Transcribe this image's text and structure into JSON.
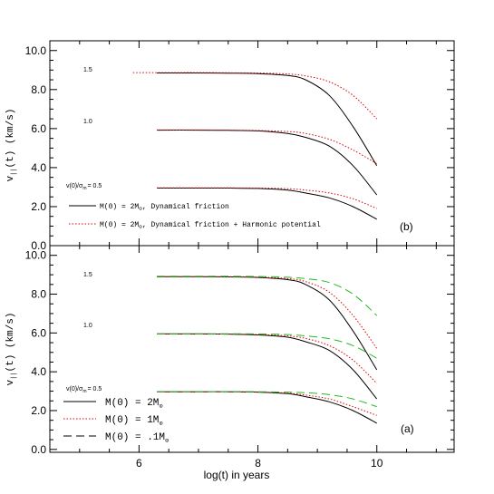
{
  "chart_data": [
    {
      "type": "line",
      "panel_label": "(b)",
      "ylabel": "v",
      "ylabel_sub": "||",
      "ylabel_tail": "(t)  (km/s)",
      "xlim": [
        4.5,
        11.3
      ],
      "ylim": [
        0,
        10.5
      ],
      "yticks": [
        "0.0",
        "2.0",
        "4.0",
        "6.0",
        "8.0",
        "10.0"
      ],
      "ytick_values": [
        0,
        2,
        4,
        6,
        8,
        10
      ],
      "annotations": [
        "1.5",
        "1.0",
        "v(0)/σ",
        "= 0.5"
      ],
      "legend": {
        "placement": "bottom-left",
        "entries": [
          {
            "text": "M(0)  =  2M",
            "sub": "⊙",
            "tail": ",  Dynamical friction",
            "style": "solid",
            "color": "#000000"
          },
          {
            "text": "M(0)  =  2M",
            "sub": "⊙",
            "tail": ",  Dynamical friction + Harmonic potential",
            "style": "dotted",
            "color": "#dd0000"
          }
        ]
      },
      "series": [
        {
          "style": "solid",
          "color": "#000000",
          "x": [
            6.3,
            7,
            7.5,
            8,
            8.5,
            8.8,
            9.2,
            9.6,
            10
          ],
          "y": [
            8.85,
            8.85,
            8.84,
            8.82,
            8.72,
            8.5,
            7.7,
            6.1,
            4.1
          ]
        },
        {
          "style": "solid",
          "color": "#000000",
          "x": [
            6.3,
            7,
            7.5,
            8,
            8.5,
            8.8,
            9.2,
            9.6,
            10
          ],
          "y": [
            5.92,
            5.92,
            5.91,
            5.88,
            5.75,
            5.55,
            5.1,
            4.1,
            2.6
          ]
        },
        {
          "style": "solid",
          "color": "#000000",
          "x": [
            6.3,
            7,
            7.5,
            8,
            8.5,
            8.8,
            9.2,
            9.6,
            10
          ],
          "y": [
            2.95,
            2.95,
            2.95,
            2.93,
            2.85,
            2.7,
            2.45,
            2.0,
            1.35
          ]
        },
        {
          "style": "dotted",
          "color": "#dd0000",
          "x": [
            5.9,
            6.5,
            7,
            7.5,
            8,
            8.5,
            8.8,
            9.2,
            9.6,
            10
          ],
          "y": [
            8.87,
            8.87,
            8.87,
            8.86,
            8.85,
            8.8,
            8.7,
            8.4,
            7.7,
            6.5
          ]
        },
        {
          "style": "dotted",
          "color": "#dd0000",
          "x": [
            6.3,
            7,
            7.5,
            8,
            8.5,
            8.8,
            9.2,
            9.6,
            10
          ],
          "y": [
            5.93,
            5.93,
            5.92,
            5.9,
            5.85,
            5.75,
            5.45,
            4.9,
            4.2
          ]
        },
        {
          "style": "dotted",
          "color": "#dd0000",
          "x": [
            6.3,
            7,
            7.5,
            8,
            8.5,
            8.8,
            9.2,
            9.6,
            10
          ],
          "y": [
            2.96,
            2.96,
            2.96,
            2.95,
            2.92,
            2.85,
            2.7,
            2.4,
            1.9
          ]
        }
      ]
    },
    {
      "type": "line",
      "panel_label": "(a)",
      "xlabel": "log(t) in years",
      "ylabel": "v",
      "ylabel_sub": "||",
      "ylabel_tail": "(t)  (km/s)",
      "xlim": [
        4.5,
        11.3
      ],
      "ylim": [
        -0.15,
        10.5
      ],
      "xticks": [
        "6",
        "8",
        "10"
      ],
      "xtick_values": [
        6,
        8,
        10
      ],
      "yticks": [
        "0.0",
        "2.0",
        "4.0",
        "6.0",
        "8.0",
        "10.0"
      ],
      "ytick_values": [
        0,
        2,
        4,
        6,
        8,
        10
      ],
      "annotations": [
        "1.5",
        "1.0",
        "v(0)/σ",
        "= 0.5"
      ],
      "legend": {
        "placement": "bottom-left",
        "entries": [
          {
            "text": "M(0)  =  2M",
            "sub": "⊙",
            "tail": "",
            "style": "solid",
            "color": "#000000"
          },
          {
            "text": "M(0)  =  1M",
            "sub": "⊙",
            "tail": "",
            "style": "dotted",
            "color": "#dd0000"
          },
          {
            "text": "M(0)  =  .1M",
            "sub": "⊙",
            "tail": "",
            "style": "dashed",
            "color": "#000000"
          }
        ]
      },
      "series": [
        {
          "style": "solid",
          "color": "#000000",
          "x": [
            6.3,
            7,
            7.5,
            8,
            8.5,
            8.8,
            9.2,
            9.6,
            10
          ],
          "y": [
            8.9,
            8.9,
            8.89,
            8.86,
            8.75,
            8.5,
            7.7,
            6.1,
            4.1
          ]
        },
        {
          "style": "solid",
          "color": "#000000",
          "x": [
            6.3,
            7,
            7.5,
            8,
            8.5,
            8.8,
            9.2,
            9.6,
            10
          ],
          "y": [
            5.95,
            5.95,
            5.94,
            5.9,
            5.78,
            5.55,
            5.1,
            4.1,
            2.6
          ]
        },
        {
          "style": "solid",
          "color": "#000000",
          "x": [
            6.3,
            7,
            7.5,
            8,
            8.5,
            8.8,
            9.2,
            9.6,
            10
          ],
          "y": [
            2.97,
            2.97,
            2.97,
            2.95,
            2.87,
            2.72,
            2.45,
            2.0,
            1.35
          ]
        },
        {
          "style": "dotted",
          "color": "#dd0000",
          "x": [
            6.3,
            7,
            7.5,
            8,
            8.5,
            8.8,
            9.2,
            9.6,
            10
          ],
          "y": [
            8.9,
            8.9,
            8.9,
            8.88,
            8.8,
            8.65,
            8.1,
            6.9,
            5.2
          ]
        },
        {
          "style": "dotted",
          "color": "#dd0000",
          "x": [
            6.3,
            7,
            7.5,
            8,
            8.5,
            8.8,
            9.2,
            9.6,
            10
          ],
          "y": [
            5.95,
            5.95,
            5.94,
            5.92,
            5.85,
            5.72,
            5.35,
            4.6,
            3.4
          ]
        },
        {
          "style": "dotted",
          "color": "#dd0000",
          "x": [
            6.3,
            7,
            7.5,
            8,
            8.5,
            8.8,
            9.2,
            9.6,
            10
          ],
          "y": [
            2.97,
            2.97,
            2.97,
            2.96,
            2.9,
            2.8,
            2.6,
            2.2,
            1.75
          ]
        },
        {
          "style": "dashed",
          "color": "#22bb22",
          "x": [
            6.3,
            7,
            7.5,
            8,
            8.5,
            8.8,
            9.2,
            9.6,
            10
          ],
          "y": [
            8.92,
            8.92,
            8.92,
            8.91,
            8.87,
            8.8,
            8.6,
            8.0,
            6.9
          ]
        },
        {
          "style": "dashed",
          "color": "#22bb22",
          "x": [
            6.3,
            7,
            7.5,
            8,
            8.5,
            8.8,
            9.2,
            9.6,
            10
          ],
          "y": [
            5.96,
            5.96,
            5.96,
            5.95,
            5.92,
            5.85,
            5.7,
            5.35,
            4.7
          ]
        },
        {
          "style": "dashed",
          "color": "#22bb22",
          "x": [
            6.3,
            7,
            7.5,
            8,
            8.5,
            8.8,
            9.2,
            9.6,
            10
          ],
          "y": [
            2.98,
            2.98,
            2.98,
            2.97,
            2.95,
            2.92,
            2.82,
            2.6,
            2.2
          ]
        }
      ]
    }
  ]
}
